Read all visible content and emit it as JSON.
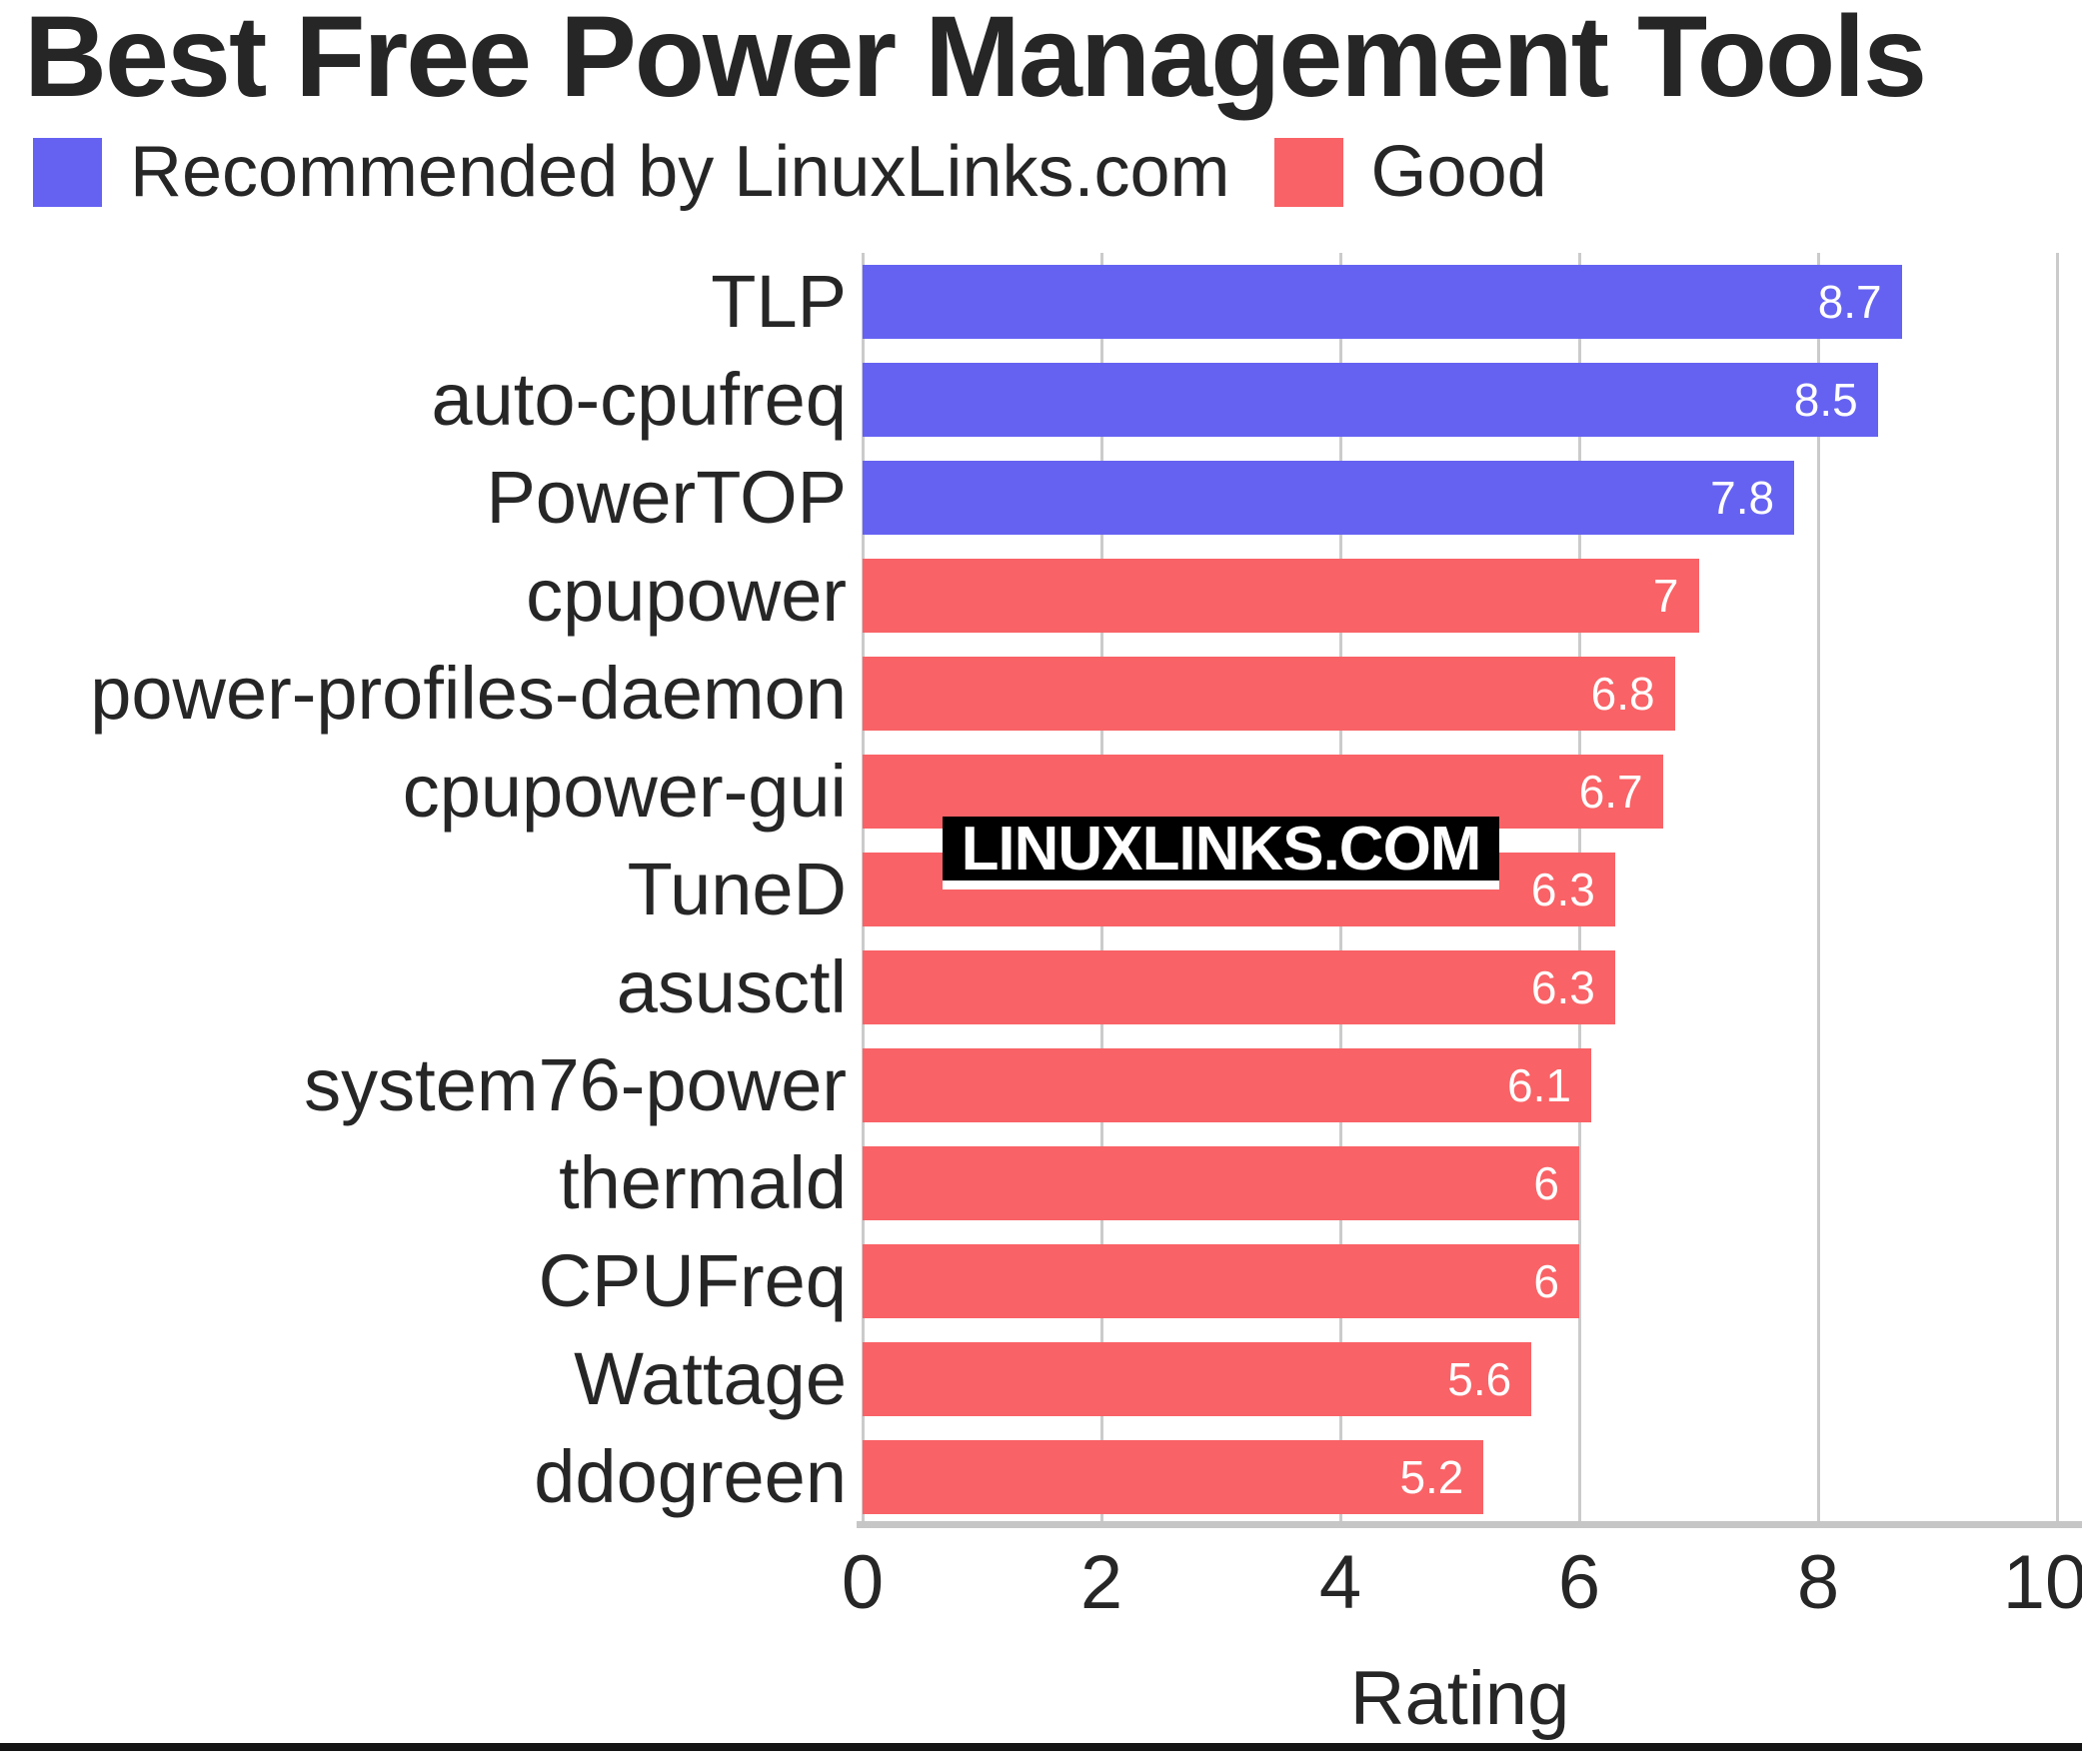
{
  "page": {
    "title": "Best Free Power Management Tools"
  },
  "legend": {
    "items": [
      {
        "label": "Recommended by LinuxLinks.com",
        "group": "recommended",
        "color": "#6562F2"
      },
      {
        "label": "Good",
        "group": "good",
        "color": "#F96266"
      }
    ]
  },
  "watermark": {
    "text": "LINUXLINKS.COM"
  },
  "colors": {
    "recommended": "#6562F2",
    "good": "#F96266",
    "gridline": "#cbcbcb",
    "axis_line": "#c6c6c6",
    "text": "#262626",
    "value_label": "#ffffff",
    "watermark_bg": "#000000",
    "watermark_fg": "#ffffff"
  },
  "chart_data": {
    "type": "bar",
    "orientation": "horizontal",
    "title": "Best Free Power Management Tools",
    "xlabel": "Rating",
    "ylabel": "",
    "xlim": [
      0,
      10
    ],
    "xticks": [
      "0",
      "2",
      "4",
      "6",
      "8",
      "10"
    ],
    "grid": true,
    "legend_position": "top-left",
    "categories": [
      "TLP",
      "auto-cpufreq",
      "PowerTOP",
      "cpupower",
      "power-profiles-daemon",
      "cpupower-gui",
      "TuneD",
      "asusctl",
      "system76-power",
      "thermald",
      "CPUFreq",
      "Wattage",
      "ddogreen"
    ],
    "values": [
      8.7,
      8.5,
      7.8,
      7,
      6.8,
      6.7,
      6.3,
      6.3,
      6.1,
      6,
      6,
      5.6,
      5.2
    ],
    "value_labels": [
      "8.7",
      "8.5",
      "7.8",
      "7",
      "6.8",
      "6.7",
      "6.3",
      "6.3",
      "6.1",
      "6",
      "6",
      "5.6",
      "5.2"
    ],
    "groups": [
      "recommended",
      "recommended",
      "recommended",
      "good",
      "good",
      "good",
      "good",
      "good",
      "good",
      "good",
      "good",
      "good",
      "good"
    ],
    "series": [
      {
        "name": "Recommended by LinuxLinks.com",
        "color": "#6562F2",
        "categories": [
          "TLP",
          "auto-cpufreq",
          "PowerTOP"
        ],
        "values": [
          8.7,
          8.5,
          7.8
        ]
      },
      {
        "name": "Good",
        "color": "#F96266",
        "categories": [
          "cpupower",
          "power-profiles-daemon",
          "cpupower-gui",
          "TuneD",
          "asusctl",
          "system76-power",
          "thermald",
          "CPUFreq",
          "Wattage",
          "ddogreen"
        ],
        "values": [
          7,
          6.8,
          6.7,
          6.3,
          6.3,
          6.1,
          6,
          6,
          5.6,
          5.2
        ]
      }
    ]
  }
}
